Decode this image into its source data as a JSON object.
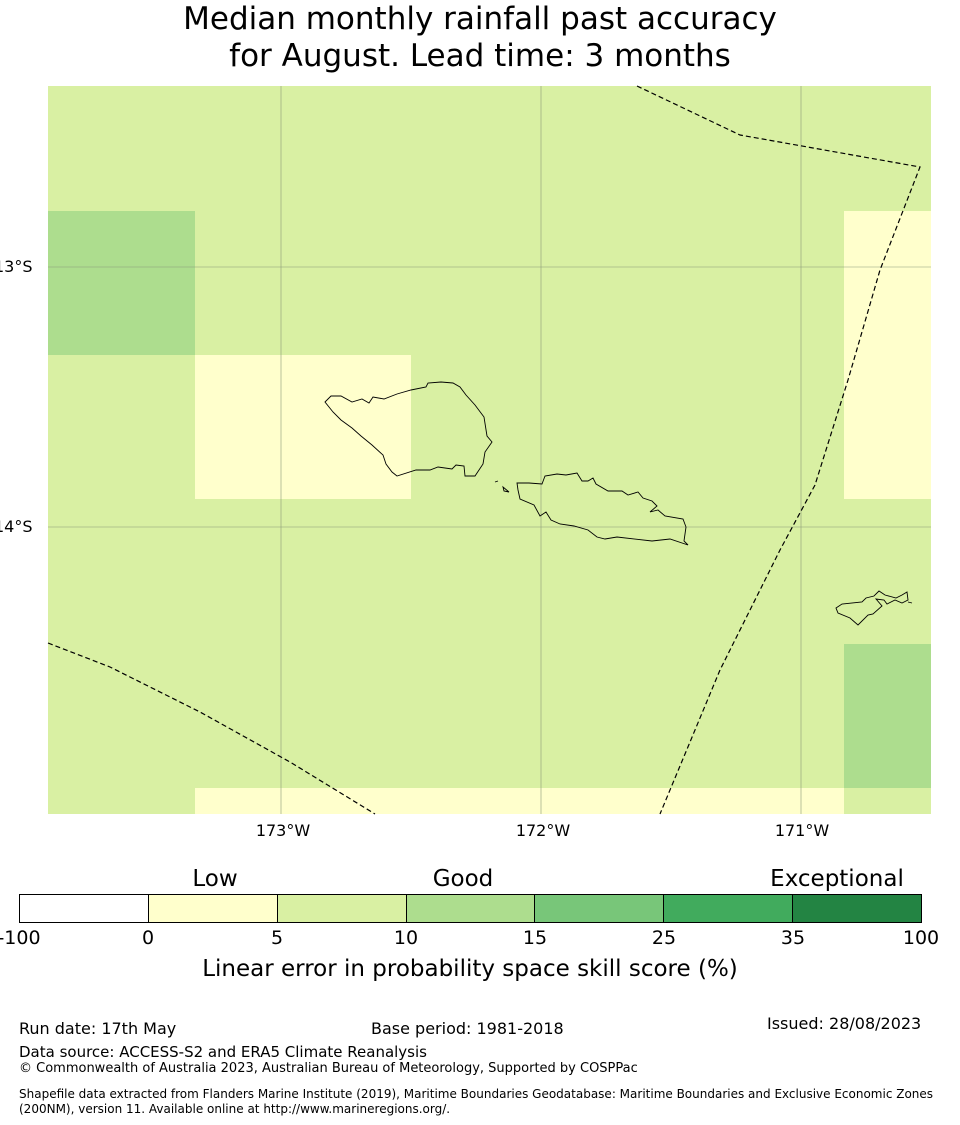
{
  "title": {
    "line1": "Median monthly rainfall past accuracy",
    "line2": "for August. Lead time: 3 months"
  },
  "map": {
    "lon_labels": [
      "173°W",
      "172°W",
      "171°W"
    ],
    "lat_labels": [
      "13°S",
      "14°S"
    ],
    "colors": {
      "light_yellow": "#ffffcc",
      "light_green": "#d9f0a3",
      "green": "#addd8e"
    }
  },
  "colorbar": {
    "category_labels": [
      "Low",
      "Good",
      "Exceptional"
    ],
    "ticks": [
      "-100",
      "0",
      "5",
      "10",
      "15",
      "25",
      "35",
      "100"
    ],
    "colors": [
      "#ffffff",
      "#ffffcc",
      "#d9f0a3",
      "#addd8e",
      "#78c679",
      "#41ab5d",
      "#238443"
    ],
    "title": "Linear error in probability space skill score (%)"
  },
  "footer": {
    "run_date": "Run date: 17th May",
    "base_period": "Base period: 1981-2018",
    "issued": "Issued: 28/08/2023",
    "data_source": "Data source: ACCESS-S2 and ERA5 Climate Reanalysis",
    "copyright": "© Commonwealth of Australia 2023, Australian Bureau of Meteorology, Supported by COSPPac",
    "shapefile_line1": "Shapefile data extracted from Flanders Marine Institute (2019), Maritime Boundaries Geodatabase: Maritime Boundaries and Exclusive Economic Zones",
    "shapefile_line2": "(200NM), version 11. Available online at http://www.marineregions.org/."
  }
}
